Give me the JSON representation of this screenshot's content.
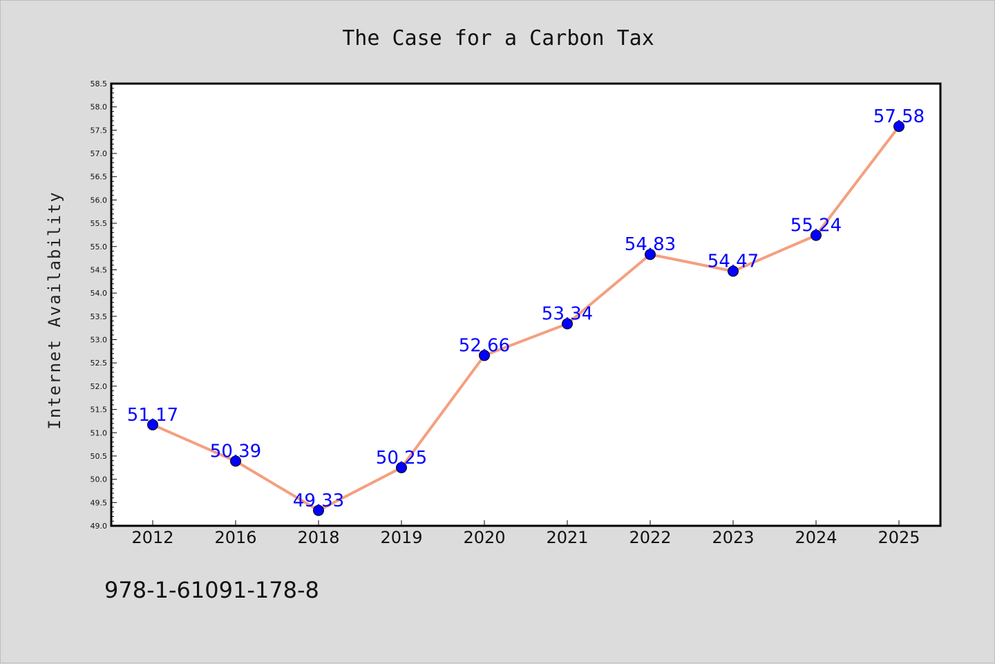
{
  "chart_data": {
    "type": "line",
    "title": "The Case for a Carbon Tax",
    "xlabel": "",
    "ylabel": "Internet Availability",
    "categories": [
      "2012",
      "2016",
      "2018",
      "2019",
      "2020",
      "2021",
      "2022",
      "2023",
      "2024",
      "2025"
    ],
    "values": [
      51.17,
      50.39,
      49.33,
      50.25,
      52.66,
      53.34,
      54.83,
      54.47,
      55.24,
      57.58
    ],
    "data_labels": [
      "51.17",
      "50.39",
      "49.33",
      "50.25",
      "52.66",
      "53.34",
      "54.83",
      "54.47",
      "55.24",
      "57.58"
    ],
    "ylim": [
      49.0,
      58.5
    ],
    "yticks": [
      "49.0",
      "49.5",
      "50.0",
      "50.5",
      "51.0",
      "51.5",
      "52.0",
      "52.5",
      "53.0",
      "53.5",
      "54.0",
      "54.5",
      "55.0",
      "55.5",
      "56.0",
      "56.5",
      "57.0",
      "57.5",
      "58.0",
      "58.5"
    ],
    "grid": false,
    "legend": "none",
    "colors": {
      "line": "#f4a07f",
      "marker": "#0000ff",
      "label": "#0000ff",
      "background": "#dcdcdc",
      "plot_background": "#ffffff"
    }
  },
  "footnote": "978-1-61091-178-8"
}
